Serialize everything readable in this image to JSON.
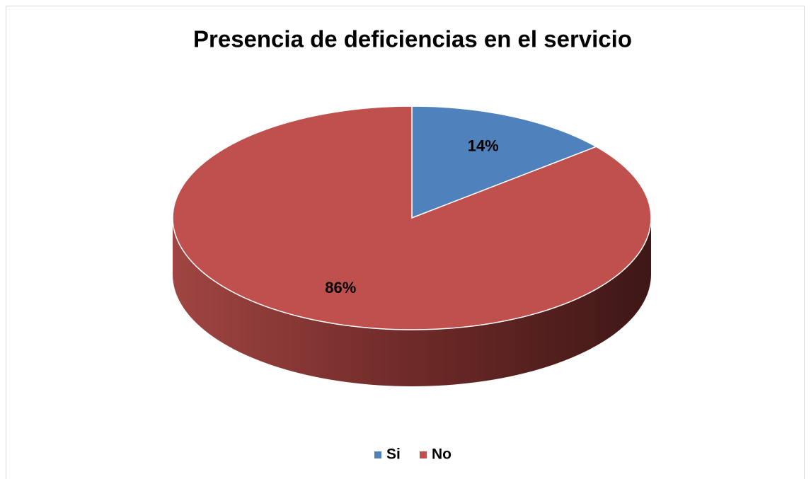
{
  "chart_data": {
    "type": "pie",
    "title": "Presencia de deficiencias en el servicio",
    "categories": [
      "Si",
      "No"
    ],
    "values": [
      14,
      86
    ],
    "value_labels": [
      "14%",
      "86%"
    ],
    "colors": [
      "#4f81bd",
      "#c0504d"
    ],
    "legend": "bottom"
  }
}
